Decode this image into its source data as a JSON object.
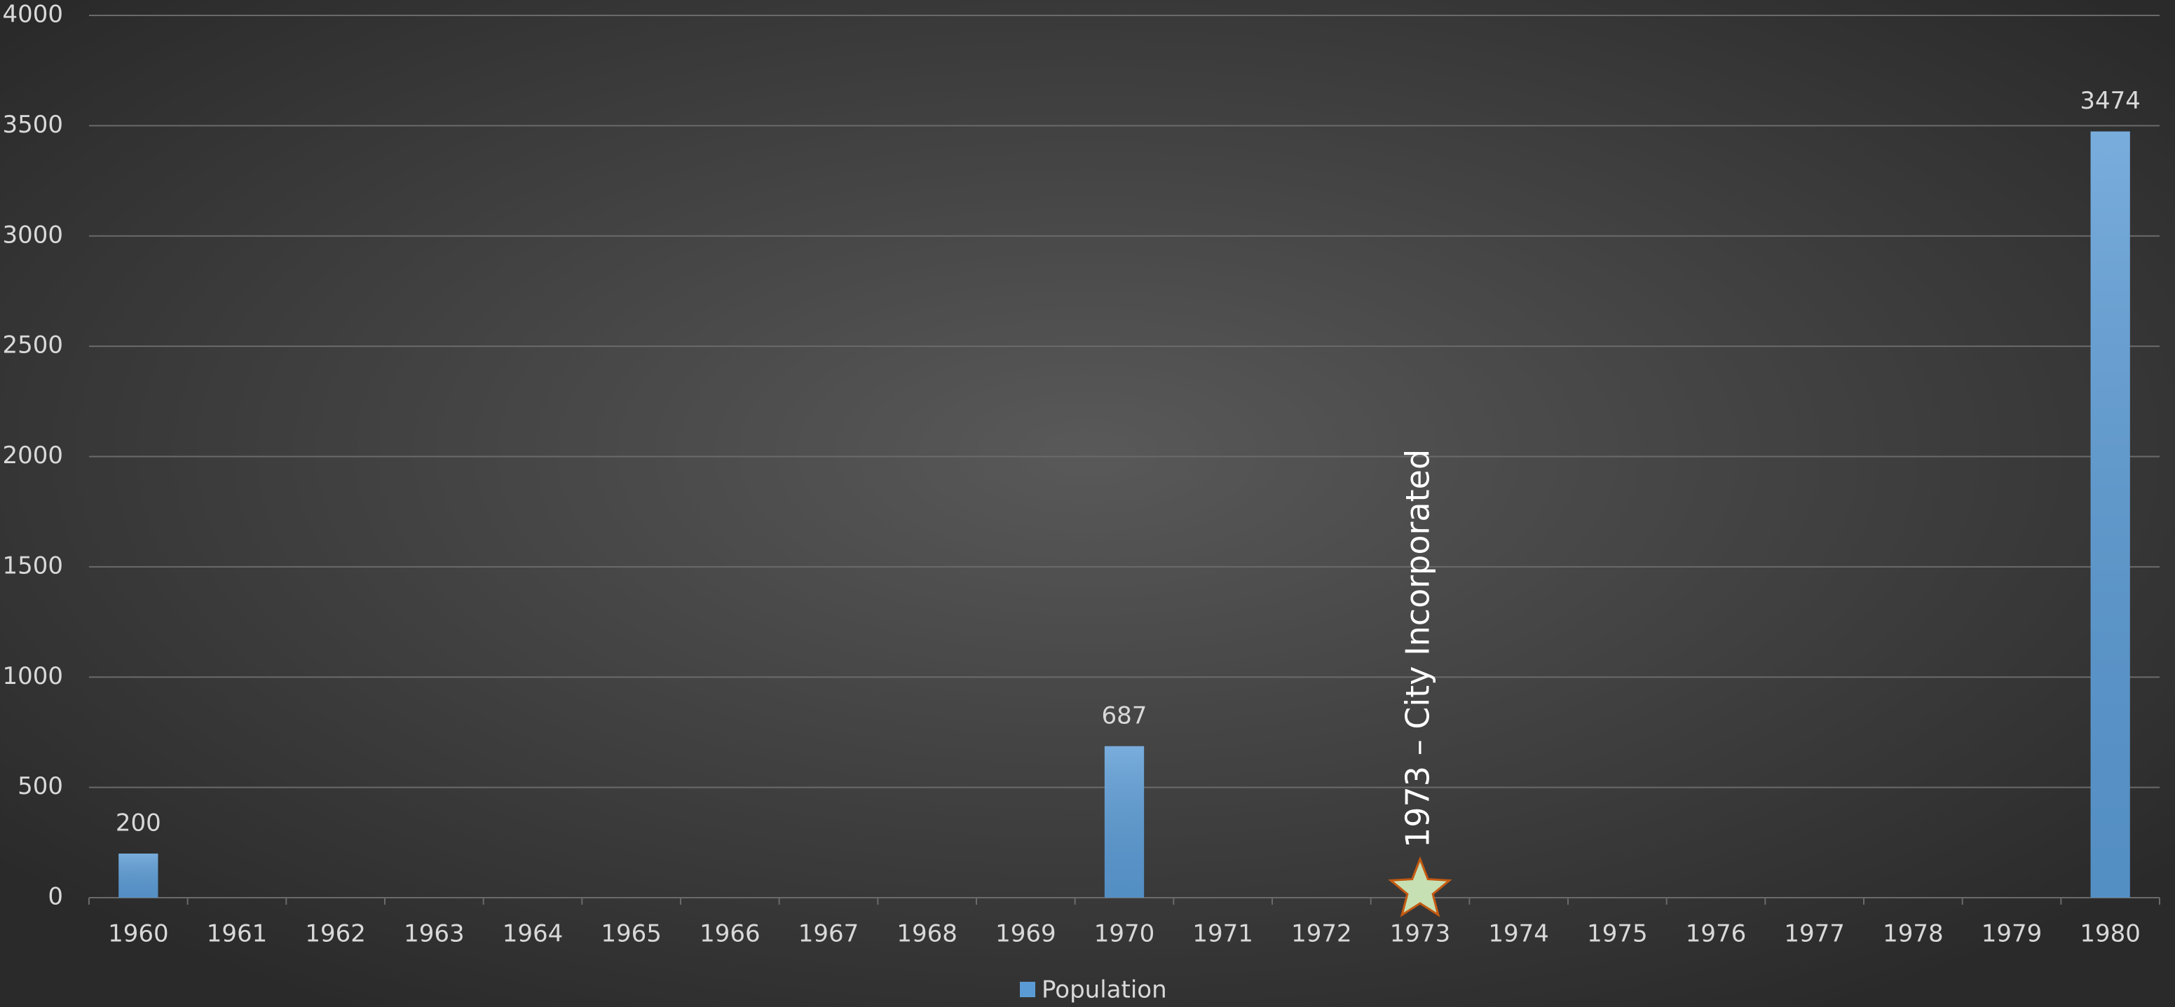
{
  "chart_data": {
    "type": "bar",
    "categories": [
      "1960",
      "1961",
      "1962",
      "1963",
      "1964",
      "1965",
      "1966",
      "1967",
      "1968",
      "1969",
      "1970",
      "1971",
      "1972",
      "1973",
      "1974",
      "1975",
      "1976",
      "1977",
      "1978",
      "1979",
      "1980"
    ],
    "series": [
      {
        "name": "Population",
        "color": "#5b9bd5",
        "values": [
          200,
          null,
          null,
          null,
          null,
          null,
          null,
          null,
          null,
          null,
          687,
          null,
          null,
          null,
          null,
          null,
          null,
          null,
          null,
          null,
          3474
        ]
      }
    ],
    "ylim": [
      0,
      4000
    ],
    "yticks": [
      0,
      500,
      1000,
      1500,
      2000,
      2500,
      3000,
      3500,
      4000
    ],
    "grid": true,
    "legend": "bottom",
    "annotations": [
      {
        "x": "1973",
        "text": "1973 – City Incorporated"
      }
    ]
  }
}
